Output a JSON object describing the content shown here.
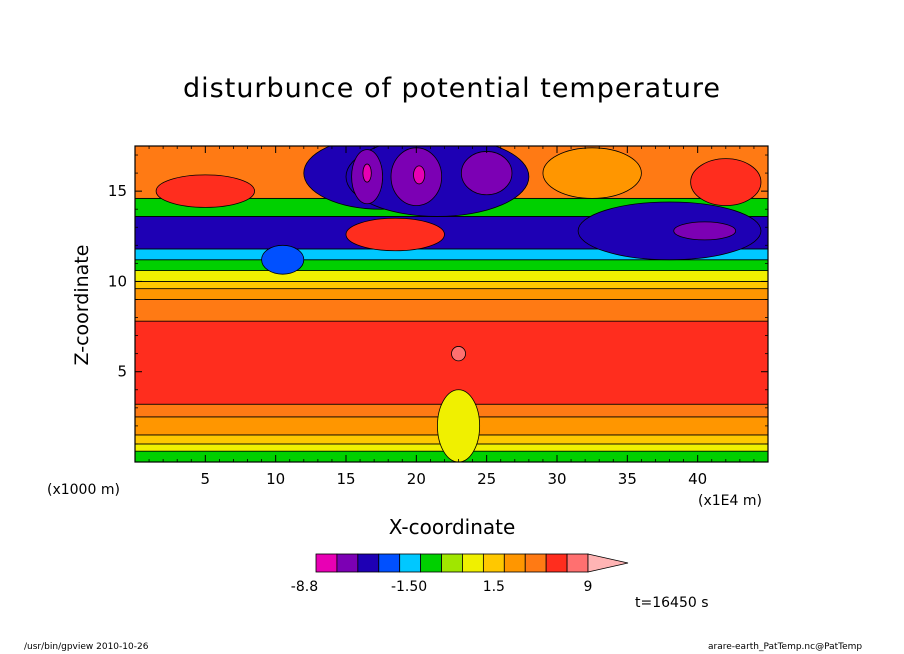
{
  "chart_data": {
    "type": "heatmap",
    "title": "disturbunce of potential temperature",
    "xlabel": "X-coordinate",
    "ylabel": "Z-coordinate",
    "x_unit": "(x1E4 m)",
    "y_unit": "(x1000 m)",
    "xlim": [
      0,
      45
    ],
    "ylim": [
      0,
      17.5
    ],
    "x_ticks": [
      5,
      10,
      15,
      20,
      25,
      30,
      35,
      40
    ],
    "y_ticks": [
      5,
      10,
      15
    ],
    "time_label": "t=16450 s",
    "colorbar": {
      "tick_labels": [
        "-8.8",
        "-1.50",
        "1.5",
        "9"
      ],
      "colors": [
        "#e800b4",
        "#7c00b4",
        "#1e00b4",
        "#0050ff",
        "#00c8ff",
        "#00d000",
        "#a0e600",
        "#f0f000",
        "#ffc800",
        "#ff9600",
        "#ff7a14",
        "#ff2d1e",
        "#ff7070",
        "#ffb4b4"
      ]
    },
    "bands": [
      {
        "z": [
          0,
          0.6
        ],
        "color": "#00d000"
      },
      {
        "z": [
          0.6,
          1.0
        ],
        "color": "#f0f000"
      },
      {
        "z": [
          1.0,
          1.5
        ],
        "color": "#ffc800"
      },
      {
        "z": [
          1.5,
          2.5
        ],
        "color": "#ff9600"
      },
      {
        "z": [
          2.5,
          3.2
        ],
        "color": "#ff7a14"
      },
      {
        "z": [
          3.2,
          7.8
        ],
        "color": "#ff2d1e"
      },
      {
        "z": [
          7.8,
          9.0
        ],
        "color": "#ff7a14"
      },
      {
        "z": [
          9.0,
          9.6
        ],
        "color": "#ff9600"
      },
      {
        "z": [
          9.6,
          10.0
        ],
        "color": "#ffc800"
      },
      {
        "z": [
          10.0,
          10.6
        ],
        "color": "#f0f000"
      },
      {
        "z": [
          10.6,
          11.2
        ],
        "color": "#00d000"
      },
      {
        "z": [
          11.2,
          11.8
        ],
        "color": "#00c8ff"
      },
      {
        "z": [
          11.8,
          13.6
        ],
        "color": "#1e00b4"
      },
      {
        "z": [
          13.6,
          14.6
        ],
        "color": "#00d000"
      },
      {
        "z": [
          14.6,
          17.5
        ],
        "color": "#ff7a14"
      }
    ],
    "blobs": [
      {
        "x": 17.5,
        "z": 16.0,
        "rx": 5.5,
        "rz": 2.0,
        "color": "#1e00b4"
      },
      {
        "x": 21.5,
        "z": 15.8,
        "rx": 6.5,
        "rz": 2.2,
        "color": "#1e00b4"
      },
      {
        "x": 16.5,
        "z": 15.8,
        "rx": 1.1,
        "rz": 1.5,
        "color": "#7c00b4"
      },
      {
        "x": 20.0,
        "z": 15.8,
        "rx": 1.8,
        "rz": 1.6,
        "color": "#7c00b4"
      },
      {
        "x": 25.0,
        "z": 16.0,
        "rx": 1.8,
        "rz": 1.2,
        "color": "#7c00b4"
      },
      {
        "x": 16.5,
        "z": 16.0,
        "rx": 0.3,
        "rz": 0.5,
        "color": "#e800b4"
      },
      {
        "x": 20.2,
        "z": 15.9,
        "rx": 0.4,
        "rz": 0.5,
        "color": "#e800b4"
      },
      {
        "x": 38.0,
        "z": 12.8,
        "rx": 6.5,
        "rz": 1.6,
        "color": "#1e00b4"
      },
      {
        "x": 40.5,
        "z": 12.8,
        "rx": 2.2,
        "rz": 0.5,
        "color": "#7c00b4"
      },
      {
        "x": 5.0,
        "z": 15.0,
        "rx": 3.5,
        "rz": 0.9,
        "color": "#ff2d1e"
      },
      {
        "x": 18.5,
        "z": 12.6,
        "rx": 3.5,
        "rz": 0.9,
        "color": "#ff2d1e"
      },
      {
        "x": 42.0,
        "z": 15.5,
        "rx": 2.5,
        "rz": 1.3,
        "color": "#ff2d1e"
      },
      {
        "x": 23.0,
        "z": 6.0,
        "rx": 0.5,
        "rz": 0.4,
        "color": "#ff7070"
      },
      {
        "x": 23.0,
        "z": 2.0,
        "rx": 1.5,
        "rz": 2.0,
        "color": "#f0f000"
      },
      {
        "x": 10.5,
        "z": 11.2,
        "rx": 1.5,
        "rz": 0.8,
        "color": "#0050ff"
      },
      {
        "x": 32.5,
        "z": 16.0,
        "rx": 3.5,
        "rz": 1.4,
        "color": "#ff9600"
      }
    ]
  },
  "footer_left": "/usr/bin/gpview   2010-10-26",
  "footer_right": "arare-earth_PatTemp.nc@PatTemp"
}
